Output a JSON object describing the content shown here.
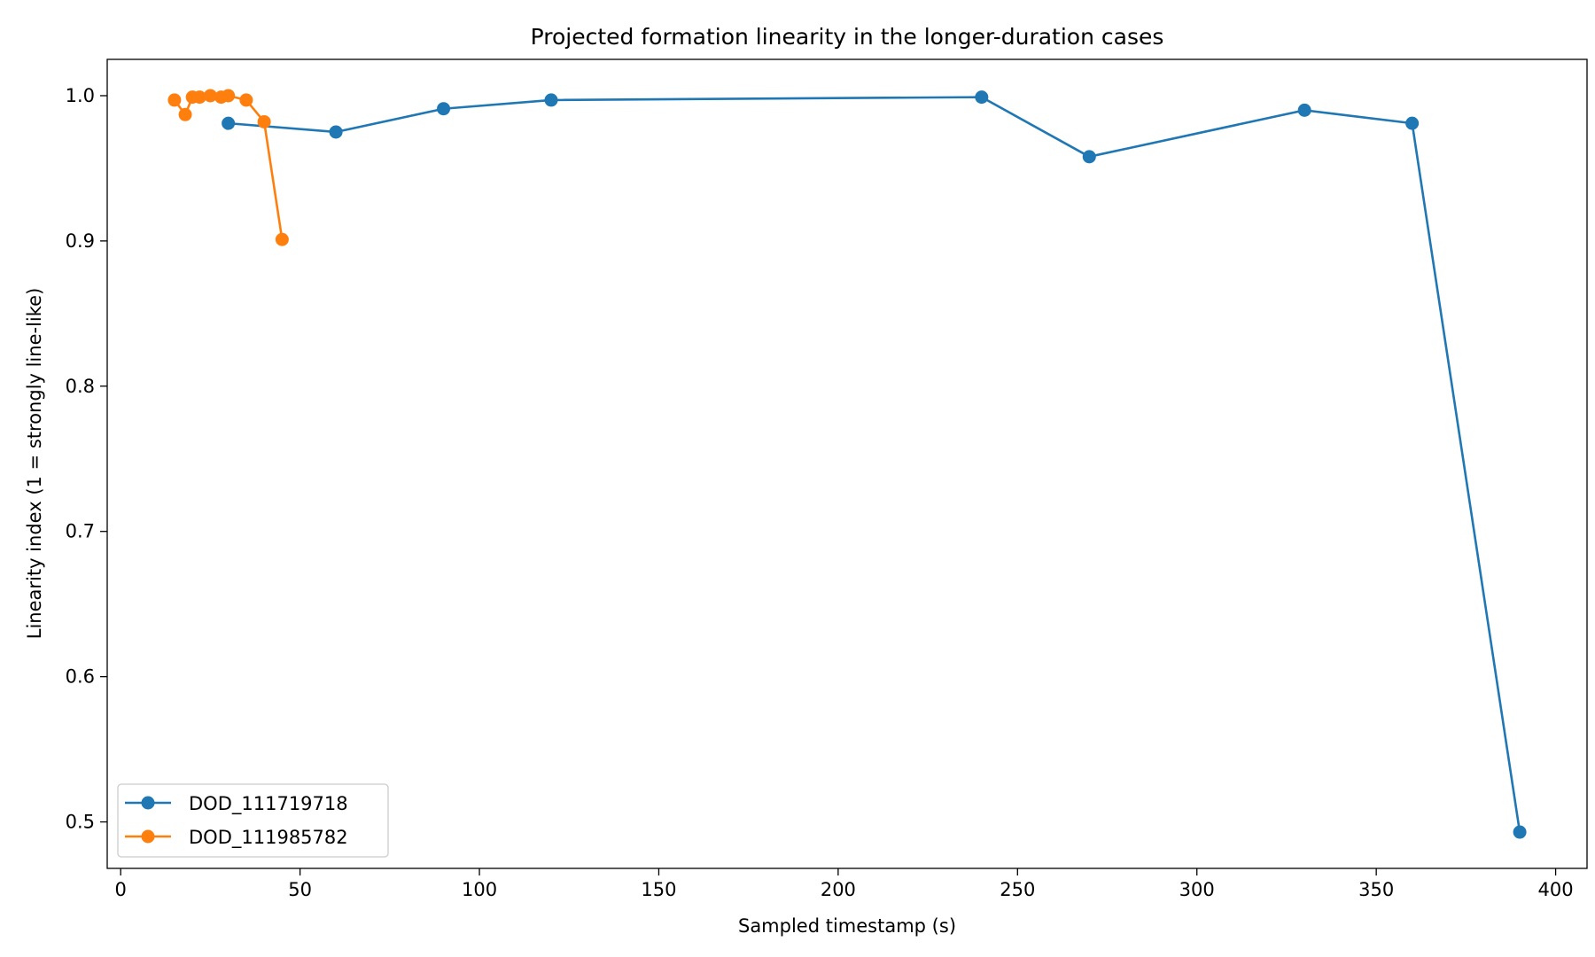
{
  "chart_data": {
    "type": "line",
    "title": "Projected formation linearity in the longer-duration cases",
    "xlabel": "Sampled timestamp (s)",
    "ylabel": "Linearity index (1 = strongly line-like)",
    "xlim": [
      -3.75,
      408.75
    ],
    "ylim": [
      0.468,
      1.025
    ],
    "xticks": [
      0,
      50,
      100,
      150,
      200,
      250,
      300,
      350,
      400
    ],
    "yticks": [
      0.5,
      0.6,
      0.7,
      0.8,
      0.9,
      1.0
    ],
    "xtick_labels": [
      "0",
      "50",
      "100",
      "150",
      "200",
      "250",
      "300",
      "350",
      "400"
    ],
    "ytick_labels": [
      "0.5",
      "0.6",
      "0.7",
      "0.8",
      "0.9",
      "1.0"
    ],
    "grid": false,
    "legend_position": "lower-left",
    "series": [
      {
        "name": "DOD_111719718",
        "color": "#1f77b4",
        "marker": "circle",
        "x": [
          30,
          60,
          90,
          120,
          240,
          270,
          330,
          360,
          390
        ],
        "y": [
          0.981,
          0.975,
          0.991,
          0.997,
          0.999,
          0.958,
          0.99,
          0.981,
          0.493
        ]
      },
      {
        "name": "DOD_111985782",
        "color": "#ff7f0e",
        "marker": "circle",
        "x": [
          15,
          18,
          20,
          22,
          25,
          28,
          30,
          35,
          40,
          45
        ],
        "y": [
          0.997,
          0.987,
          0.999,
          0.999,
          1.0,
          0.999,
          1.0,
          0.997,
          0.982,
          0.901
        ]
      }
    ]
  }
}
